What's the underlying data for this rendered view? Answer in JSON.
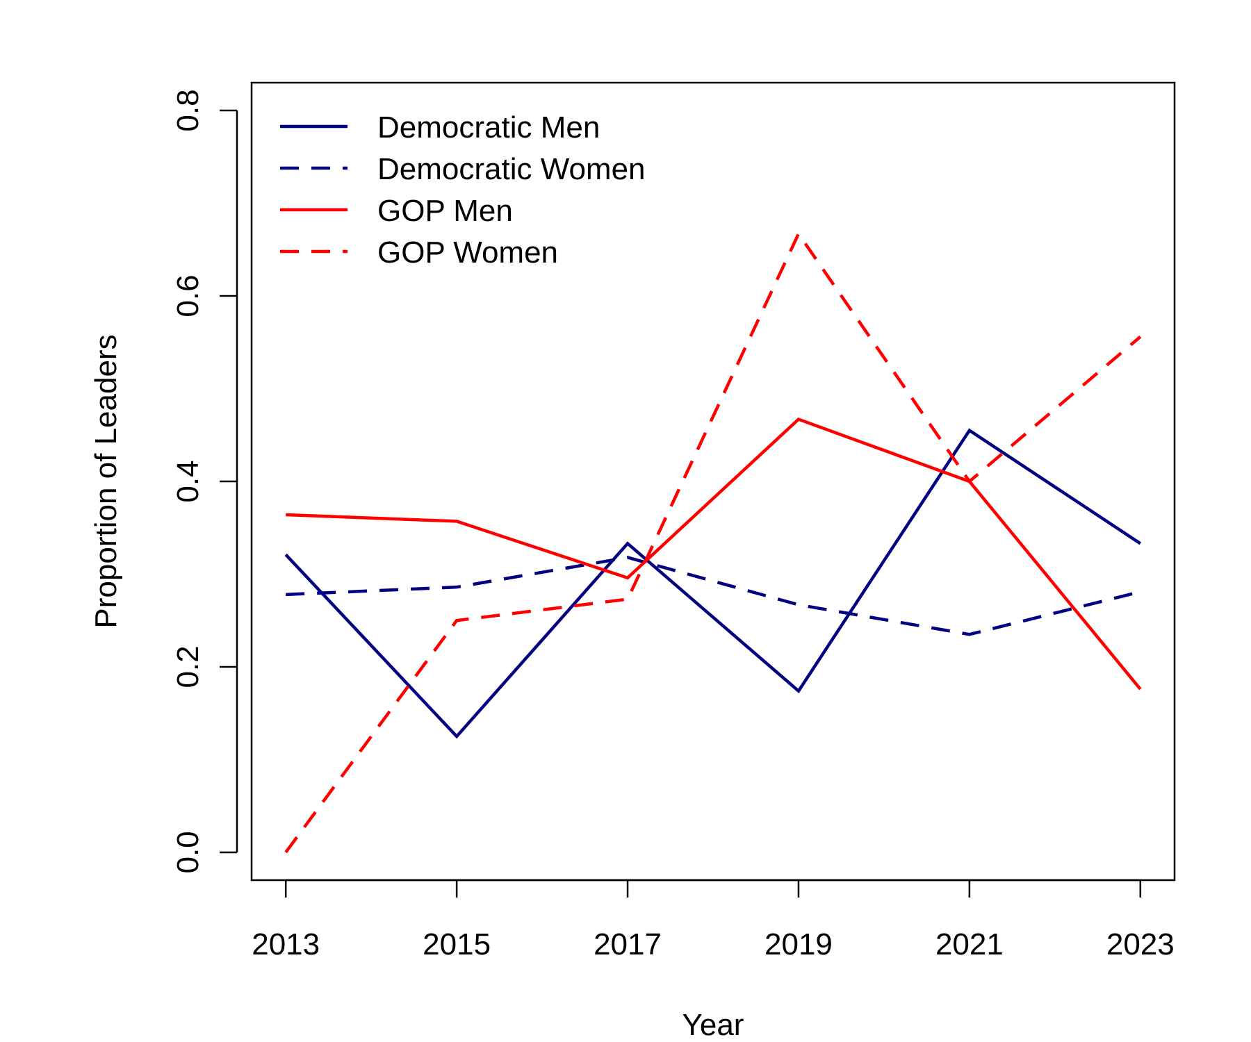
{
  "chart_data": {
    "type": "line",
    "title": "",
    "xlabel": "Year",
    "ylabel": "Proportion of Leaders",
    "x": [
      2013,
      2015,
      2017,
      2019,
      2021,
      2023
    ],
    "xlim": [
      2012.6,
      2023.4
    ],
    "ylim": [
      -0.03,
      0.83
    ],
    "x_ticks": [
      2013,
      2015,
      2017,
      2019,
      2021,
      2023
    ],
    "y_ticks": [
      0.0,
      0.2,
      0.4,
      0.6,
      0.8
    ],
    "y_tick_labels": [
      "0.0",
      "0.2",
      "0.4",
      "0.6",
      "0.8"
    ],
    "x_tick_labels": [
      "2013",
      "2015",
      "2017",
      "2019",
      "2021",
      "2023"
    ],
    "grid": false,
    "legend_position": "top-left",
    "series": [
      {
        "name": "Democratic Men",
        "color": "#000080",
        "dash": "solid",
        "values": [
          0.321,
          0.125,
          0.333,
          0.174,
          0.455,
          0.333
        ]
      },
      {
        "name": "Democratic Women",
        "color": "#000080",
        "dash": "dashed",
        "values": [
          0.278,
          0.286,
          0.318,
          0.267,
          0.235,
          0.281
        ]
      },
      {
        "name": "GOP Men",
        "color": "#ff0000",
        "dash": "solid",
        "values": [
          0.364,
          0.357,
          0.296,
          0.467,
          0.4,
          0.176
        ]
      },
      {
        "name": "GOP Women",
        "color": "#ff0000",
        "dash": "dashed",
        "values": [
          0.0,
          0.25,
          0.273,
          0.667,
          0.4,
          0.556
        ]
      }
    ]
  }
}
